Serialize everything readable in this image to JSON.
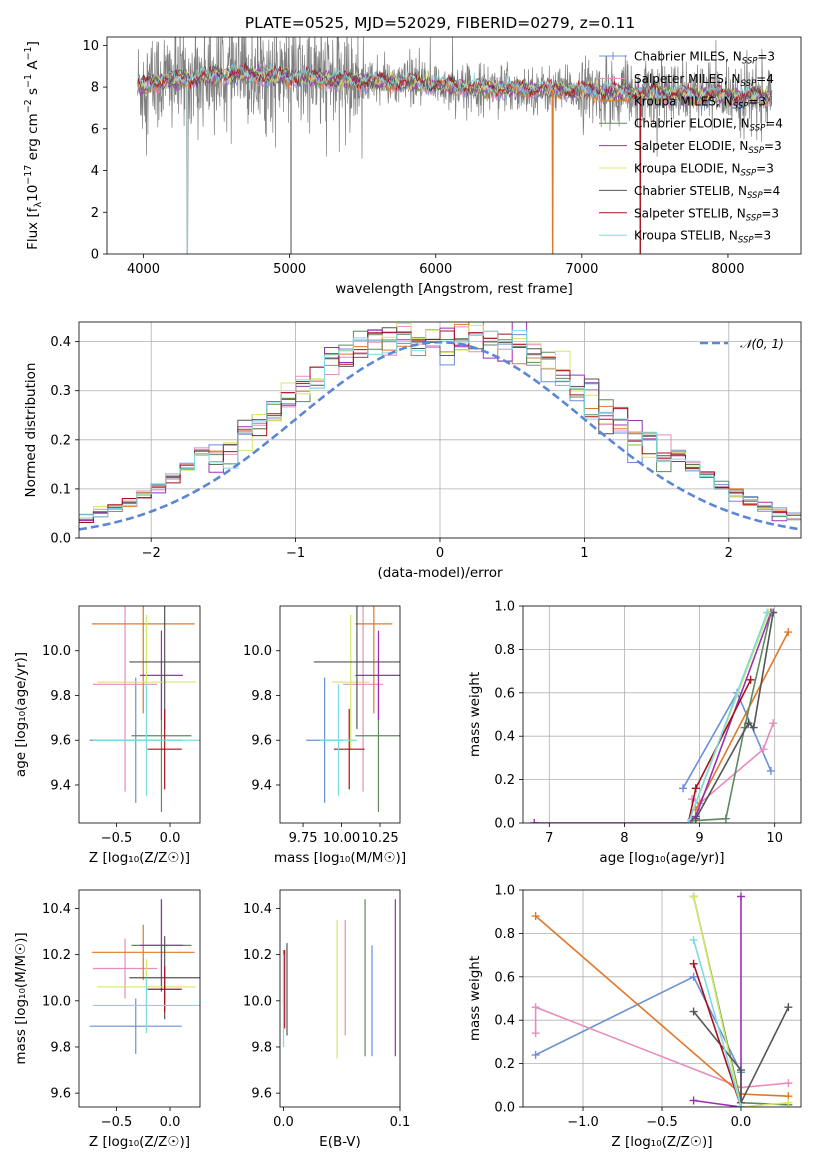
{
  "title": "PLATE=0525, MJD=52029, FIBERID=0279, z=0.11",
  "colors": {
    "chabrier_miles": "#6b8fd8",
    "salpeter_miles": "#e88cbc",
    "kroupa_miles": "#e0782a",
    "chabrier_elodie": "#5e8a5e",
    "salpeter_elodie": "#9b30b8",
    "kroupa_elodie": "#d4e86a",
    "chabrier_stelib": "#555555",
    "salpeter_stelib": "#a8101e",
    "kroupa_stelib": "#7edbe0",
    "data": "#7f7f7f",
    "normal": "#5b87d6"
  },
  "legend_spectrum": [
    {
      "pre": "Chabrier MILES, N",
      "sub": "SSP",
      "post": "=3"
    },
    {
      "pre": "Salpeter MILES, N",
      "sub": "SSP",
      "post": "=4"
    },
    {
      "pre": "Kroupa MILES, N",
      "sub": "SSP",
      "post": "=3"
    },
    {
      "pre": "Chabrier ELODIE, N",
      "sub": "SSP",
      "post": "=4"
    },
    {
      "pre": "Salpeter ELODIE, N",
      "sub": "SSP",
      "post": "=3"
    },
    {
      "pre": "Kroupa ELODIE, N",
      "sub": "SSP",
      "post": "=3"
    },
    {
      "pre": "Chabrier STELIB, N",
      "sub": "SSP",
      "post": "=4"
    },
    {
      "pre": "Salpeter STELIB, N",
      "sub": "SSP",
      "post": "=3"
    },
    {
      "pre": "Kroupa STELIB, N",
      "sub": "SSP",
      "post": "=3"
    }
  ],
  "legend_hist": "𝒩(0, 1)",
  "chart_data": [
    {
      "id": "spectrum",
      "type": "line",
      "xlabel": "wavelength [Angstrom, rest frame]",
      "ylabel": "Flux [f_λ 10^-17 erg cm^-2 s^-1 A^-1]",
      "xlim": [
        3750,
        8500
      ],
      "ylim": [
        0,
        10.4
      ],
      "xticks": [
        "4000",
        "5000",
        "6000",
        "7000",
        "8000"
      ],
      "yticks": [
        "0",
        "2",
        "4",
        "6",
        "8",
        "10"
      ],
      "model_continuum": {
        "x": [
          3960,
          4100,
          4300,
          4600,
          5000,
          5400,
          5800,
          6200,
          6600,
          7000,
          7400,
          7800,
          8300
        ],
        "y": [
          8.0,
          8.3,
          8.4,
          8.6,
          8.5,
          8.3,
          8.2,
          8.0,
          7.9,
          7.8,
          7.7,
          7.6,
          7.5
        ]
      },
      "data_range": [
        3960,
        8300
      ],
      "deep_absorptions": [
        {
          "x": 4300,
          "y": 0.0
        },
        {
          "x": 5010,
          "y": 0.0
        },
        {
          "x": 6800,
          "y": 0.0
        },
        {
          "x": 7400,
          "y": 0.0
        }
      ]
    },
    {
      "id": "residuals",
      "type": "bar",
      "xlabel": "(data-model)/error",
      "ylabel": "Normed distribution",
      "xlim": [
        -2.5,
        2.5
      ],
      "ylim": [
        0,
        0.44
      ],
      "xticks": [
        "−2",
        "−1",
        "0",
        "1",
        "2"
      ],
      "yticks": [
        "0.0",
        "0.1",
        "0.2",
        "0.3",
        "0.4"
      ],
      "bin_width": 0.1,
      "gaussian": {
        "mean": 0,
        "sigma": 1
      }
    },
    {
      "id": "age-vs-Z",
      "type": "scatter",
      "xlabel": "Z [log₁₀(Z/Z☉)]",
      "ylabel": "age [log₁₀(age/yr)]",
      "xlim": [
        -0.85,
        0.28
      ],
      "ylim": [
        9.23,
        10.2
      ],
      "xticks": [
        "−0.5",
        "0.0"
      ],
      "yticks": [
        "9.4",
        "9.6",
        "9.8",
        "10.0"
      ],
      "points": [
        {
          "c": "chabrier_miles",
          "x": -0.32,
          "y": 9.6,
          "xe": 0.43,
          "ye": 0.28
        },
        {
          "c": "salpeter_miles",
          "x": -0.42,
          "y": 9.85,
          "xe": 0.3,
          "ye": 0.48
        },
        {
          "c": "kroupa_miles",
          "x": -0.25,
          "y": 10.12,
          "xe": 0.48,
          "ye": 0.4
        },
        {
          "c": "chabrier_elodie",
          "x": -0.08,
          "y": 9.62,
          "xe": 0.28,
          "ye": 0.34
        },
        {
          "c": "salpeter_elodie",
          "x": -0.08,
          "y": 9.89,
          "xe": 0.2,
          "ye": 0.2
        },
        {
          "c": "kroupa_elodie",
          "x": -0.22,
          "y": 9.86,
          "xe": 0.46,
          "ye": 0.3
        },
        {
          "c": "chabrier_stelib",
          "x": -0.05,
          "y": 9.95,
          "xe": 0.33,
          "ye": 0.3
        },
        {
          "c": "salpeter_stelib",
          "x": -0.05,
          "y": 9.56,
          "xe": 0.16,
          "ye": 0.18
        },
        {
          "c": "kroupa_stelib",
          "x": -0.22,
          "y": 9.6,
          "xe": 0.5,
          "ye": 0.25
        }
      ]
    },
    {
      "id": "age-vs-mass",
      "type": "scatter",
      "xlabel": "mass [log₁₀(M/M☉)]",
      "ylabel": "",
      "xlim": [
        9.6,
        10.38
      ],
      "ylim": [
        9.23,
        10.2
      ],
      "xticks": [
        "9.75",
        "10.00",
        "10.25"
      ],
      "yticks": [
        "9.4",
        "9.6",
        "9.8",
        "10.0"
      ],
      "points": [
        {
          "c": "chabrier_miles",
          "x": 9.89,
          "y": 9.6,
          "xe": 0.12,
          "ye": 0.28
        },
        {
          "c": "salpeter_miles",
          "x": 10.14,
          "y": 9.85,
          "xe": 0.13,
          "ye": 0.48
        },
        {
          "c": "kroupa_miles",
          "x": 10.21,
          "y": 10.12,
          "xe": 0.12,
          "ye": 0.4
        },
        {
          "c": "chabrier_elodie",
          "x": 10.24,
          "y": 9.62,
          "xe": 0.15,
          "ye": 0.34
        },
        {
          "c": "salpeter_elodie",
          "x": 10.24,
          "y": 9.89,
          "xe": 0.15,
          "ye": 0.2
        },
        {
          "c": "kroupa_elodie",
          "x": 10.06,
          "y": 9.86,
          "xe": 0.12,
          "ye": 0.3
        },
        {
          "c": "chabrier_stelib",
          "x": 10.1,
          "y": 9.95,
          "xe": 0.28,
          "ye": 0.3
        },
        {
          "c": "salpeter_stelib",
          "x": 10.05,
          "y": 9.56,
          "xe": 0.1,
          "ye": 0.18
        },
        {
          "c": "kroupa_stelib",
          "x": 9.98,
          "y": 9.6,
          "xe": 0.12,
          "ye": 0.25
        }
      ]
    },
    {
      "id": "weight-vs-age",
      "type": "line",
      "xlabel": "age [log₁₀(age/yr)]",
      "ylabel": "mass weight",
      "xlim": [
        6.65,
        10.35
      ],
      "ylim": [
        0,
        1
      ],
      "xticks": [
        "7",
        "8",
        "9",
        "10"
      ],
      "yticks": [
        "0.0",
        "0.2",
        "0.4",
        "0.6",
        "0.8",
        "1.0"
      ],
      "series": [
        {
          "c": "chabrier_miles",
          "x": [
            8.78,
            9.5,
            9.95
          ],
          "y": [
            0.16,
            0.6,
            0.24
          ]
        },
        {
          "c": "salpeter_miles",
          "x": [
            8.9,
            9.0,
            9.85,
            9.98
          ],
          "y": [
            0.11,
            0.09,
            0.34,
            0.46
          ]
        },
        {
          "c": "kroupa_miles",
          "x": [
            8.95,
            10.18
          ],
          "y": [
            0.06,
            0.88
          ]
        },
        {
          "c": "chabrier_elodie",
          "x": [
            8.9,
            9.35,
            9.6,
            9.95
          ],
          "y": [
            0.01,
            0.02,
            0.44,
            0.97
          ]
        },
        {
          "c": "salpeter_elodie",
          "x": [
            6.8,
            8.85,
            8.95,
            9.95
          ],
          "y": [
            0.0,
            0.0,
            0.03,
            0.97
          ]
        },
        {
          "c": "kroupa_elodie",
          "x": [
            8.85,
            9.92
          ],
          "y": [
            0.0,
            0.97
          ]
        },
        {
          "c": "chabrier_stelib",
          "x": [
            8.95,
            9.65,
            9.72,
            9.98
          ],
          "y": [
            0.02,
            0.46,
            0.44,
            0.97
          ]
        },
        {
          "c": "salpeter_stelib",
          "x": [
            8.85,
            8.95,
            9.68
          ],
          "y": [
            0.0,
            0.16,
            0.66
          ]
        },
        {
          "c": "kroupa_stelib",
          "x": [
            8.85,
            9.9
          ],
          "y": [
            0.0,
            0.97
          ]
        }
      ]
    },
    {
      "id": "mass-vs-Z",
      "type": "scatter",
      "xlabel": "Z [log₁₀(Z/Z☉)]",
      "ylabel": "mass [log₁₀(M/M☉)]",
      "xlim": [
        -0.85,
        0.28
      ],
      "ylim": [
        9.54,
        10.48
      ],
      "xticks": [
        "−0.5",
        "0.0"
      ],
      "yticks": [
        "9.6",
        "9.8",
        "10.0",
        "10.2",
        "10.4"
      ],
      "points": [
        {
          "c": "chabrier_miles",
          "x": -0.32,
          "y": 9.89,
          "xe": 0.43,
          "ye": 0.12
        },
        {
          "c": "salpeter_miles",
          "x": -0.42,
          "y": 10.14,
          "xe": 0.3,
          "ye": 0.13
        },
        {
          "c": "kroupa_miles",
          "x": -0.25,
          "y": 10.21,
          "xe": 0.48,
          "ye": 0.12
        },
        {
          "c": "chabrier_elodie",
          "x": -0.08,
          "y": 10.24,
          "xe": 0.28,
          "ye": 0.2
        },
        {
          "c": "salpeter_elodie",
          "x": -0.08,
          "y": 10.24,
          "xe": 0.2,
          "ye": 0.2
        },
        {
          "c": "kroupa_elodie",
          "x": -0.22,
          "y": 10.06,
          "xe": 0.46,
          "ye": 0.12
        },
        {
          "c": "chabrier_stelib",
          "x": -0.05,
          "y": 10.1,
          "xe": 0.33,
          "ye": 0.18
        },
        {
          "c": "salpeter_stelib",
          "x": -0.05,
          "y": 10.05,
          "xe": 0.16,
          "ye": 0.1
        },
        {
          "c": "kroupa_stelib",
          "x": -0.22,
          "y": 9.98,
          "xe": 0.5,
          "ye": 0.12
        }
      ]
    },
    {
      "id": "mass-vs-ebv",
      "type": "scatter",
      "xlabel": "E(B-V)",
      "ylabel": "",
      "xlim": [
        -0.003,
        0.1
      ],
      "ylim": [
        9.54,
        10.48
      ],
      "xticks": [
        "0.0",
        "0.1"
      ],
      "yticks": [
        "9.6",
        "9.8",
        "10.0",
        "10.2",
        "10.4"
      ],
      "points": [
        {
          "c": "chabrier_miles",
          "x": 0.076,
          "y": 10.0,
          "xe": 0,
          "ye": 0.24
        },
        {
          "c": "salpeter_miles",
          "x": 0.053,
          "y": 10.1,
          "xe": 0,
          "ye": 0.25
        },
        {
          "c": "kroupa_miles",
          "x": 0.0,
          "y": 10.1,
          "xe": 0,
          "ye": 0.12
        },
        {
          "c": "chabrier_elodie",
          "x": 0.07,
          "y": 10.1,
          "xe": 0,
          "ye": 0.34
        },
        {
          "c": "salpeter_elodie",
          "x": 0.096,
          "y": 10.1,
          "xe": 0,
          "ye": 0.34
        },
        {
          "c": "kroupa_elodie",
          "x": 0.046,
          "y": 10.05,
          "xe": 0,
          "ye": 0.3
        },
        {
          "c": "chabrier_stelib",
          "x": 0.003,
          "y": 10.05,
          "xe": 0,
          "ye": 0.2
        },
        {
          "c": "salpeter_stelib",
          "x": 0.001,
          "y": 10.05,
          "xe": 0,
          "ye": 0.17
        },
        {
          "c": "kroupa_stelib",
          "x": 0.0,
          "y": 10.0,
          "xe": 0,
          "ye": 0.2
        }
      ]
    },
    {
      "id": "weight-vs-Z",
      "type": "line",
      "xlabel": "Z [log₁₀(Z/Z☉)]",
      "ylabel": "mass weight",
      "xlim": [
        -1.38,
        0.38
      ],
      "ylim": [
        0,
        1
      ],
      "xticks": [
        "−1.0",
        "−0.5",
        "0.0"
      ],
      "yticks": [
        "0.0",
        "0.2",
        "0.4",
        "0.6",
        "0.8",
        "1.0"
      ],
      "series": [
        {
          "c": "chabrier_miles",
          "x": [
            -1.3,
            -0.3,
            0.0
          ],
          "y": [
            0.24,
            0.6,
            0.16
          ]
        },
        {
          "c": "salpeter_miles",
          "x": [
            -1.3,
            -1.3,
            0.0,
            0.3
          ],
          "y": [
            0.34,
            0.46,
            0.09,
            0.11
          ]
        },
        {
          "c": "kroupa_miles",
          "x": [
            -1.3,
            0.0,
            0.3
          ],
          "y": [
            0.88,
            0.06,
            0.05
          ]
        },
        {
          "c": "chabrier_elodie",
          "x": [
            -0.3,
            0.0,
            0.3
          ],
          "y": [
            0.97,
            0.02,
            0.01
          ]
        },
        {
          "c": "salpeter_elodie",
          "x": [
            -0.3,
            0.0,
            0.0
          ],
          "y": [
            0.03,
            0.0,
            0.97
          ]
        },
        {
          "c": "kroupa_elodie",
          "x": [
            -0.3,
            0.0,
            0.3
          ],
          "y": [
            0.97,
            0.0,
            0.02
          ]
        },
        {
          "c": "chabrier_stelib",
          "x": [
            -0.3,
            0.0,
            0.0,
            0.3
          ],
          "y": [
            0.44,
            0.17,
            0.02,
            0.46
          ]
        },
        {
          "c": "salpeter_stelib",
          "x": [
            -0.3,
            0.0
          ],
          "y": [
            0.66,
            0.0
          ]
        },
        {
          "c": "kroupa_stelib",
          "x": [
            -0.3,
            0.0
          ],
          "y": [
            0.77,
            0.0
          ]
        }
      ]
    }
  ]
}
